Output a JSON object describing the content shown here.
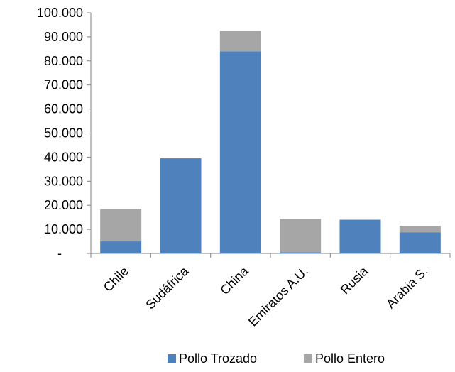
{
  "chart_data": {
    "type": "bar",
    "stacked": true,
    "categories": [
      "Chile",
      "Sudáfrica",
      "China",
      "Emiratos A.U.",
      "Rusia",
      "Arabia S."
    ],
    "series": [
      {
        "name": "Pollo Trozado",
        "color": "#4f81bd",
        "values": [
          5000,
          39500,
          84000,
          500,
          14000,
          8800
        ]
      },
      {
        "name": "Pollo Entero",
        "color": "#a6a6a6",
        "values": [
          13500,
          0,
          8500,
          13800,
          0,
          2700
        ]
      }
    ],
    "y_ticks": [
      "-",
      "10.000",
      "20.000",
      "30.000",
      "40.000",
      "50.000",
      "60.000",
      "70.000",
      "80.000",
      "90.000",
      "100.000"
    ],
    "ylim": [
      0,
      100000
    ],
    "grid": false,
    "legend_position": "bottom",
    "title": "",
    "xlabel": "",
    "ylabel": ""
  }
}
